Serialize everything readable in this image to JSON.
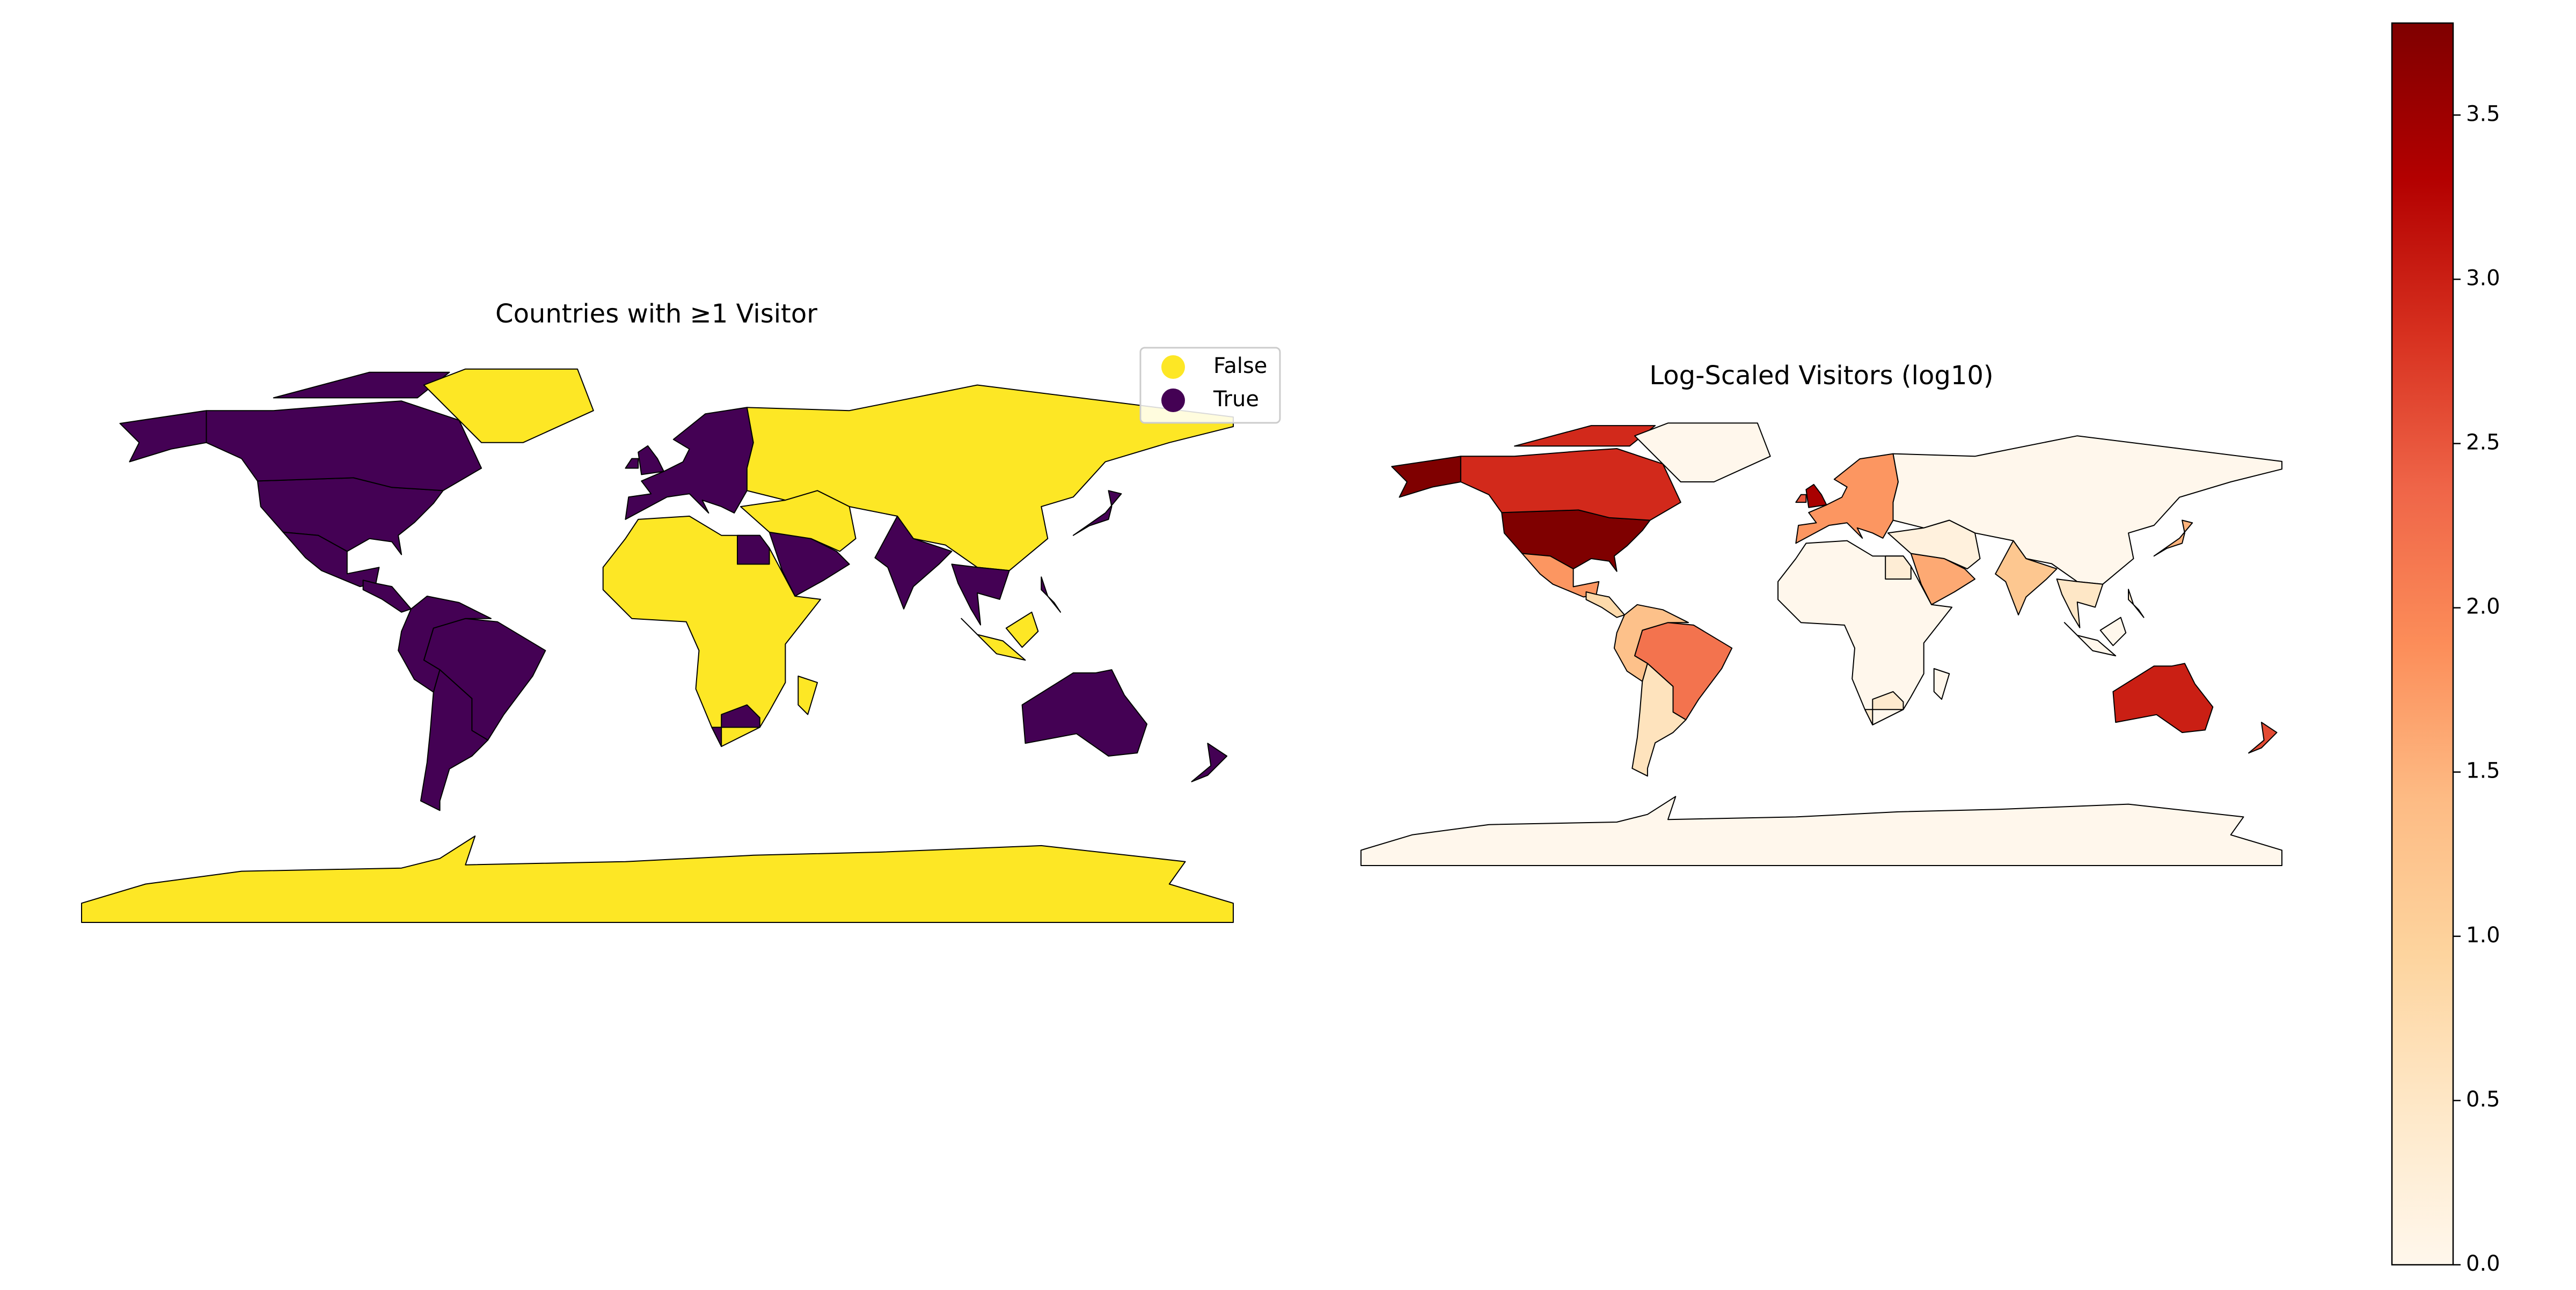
{
  "chart_data": [
    {
      "type": "choropleth",
      "title": "Countries with ≥1 Visitor",
      "legend": [
        {
          "name": "False",
          "color": "#fde725"
        },
        {
          "name": "True",
          "color": "#440154"
        }
      ],
      "values": [
        "True",
        "True",
        "True",
        "True",
        "False",
        "True",
        "True",
        "True",
        "True",
        "True",
        "True",
        "True",
        "True",
        "False",
        "True",
        "False",
        "True",
        "True",
        "False",
        "True",
        "True",
        "True",
        "False",
        "False",
        "True",
        "True",
        "True",
        "False",
        "False"
      ]
    },
    {
      "type": "choropleth",
      "title": "Log-Scaled Visitors (log10)",
      "values": [
        3.78,
        3.78,
        2.9,
        2.9,
        0,
        1.8,
        0.8,
        2.2,
        1.3,
        0.6,
        1.8,
        3.4,
        2.5,
        0,
        1.6,
        0.2,
        1.2,
        0.5,
        0,
        0.4,
        0.3,
        1.5,
        0,
        0,
        0.4,
        3.0,
        2.6,
        0,
        0
      ],
      "colormap": [
        "#fff7ec",
        "#fee8c8",
        "#fdd49e",
        "#fdbb84",
        "#fc8d59",
        "#ef6548",
        "#d7301f",
        "#b30000",
        "#7f0000"
      ],
      "colorbar": {
        "lim": [
          0,
          3.78
        ],
        "ticks": [
          {
            "value": 0,
            "label": "0.0"
          },
          0.5,
          {
            "value": 1,
            "label": "1.0"
          },
          1.5,
          {
            "value": 2,
            "label": "2.0"
          },
          2.5,
          {
            "value": 3,
            "label": "3.0"
          },
          3.5
        ]
      }
    }
  ]
}
